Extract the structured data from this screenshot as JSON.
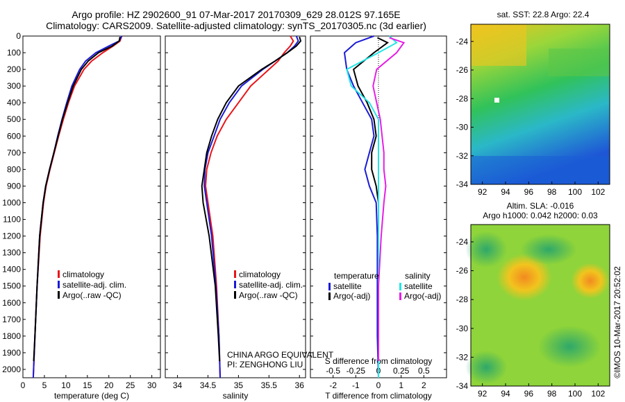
{
  "header": {
    "title_line1": "Argo profile: HZ 2902600_91 07-Mar-2017 20170309_629 28.012S 97.165E",
    "title_line2": "Climatology: CARS2009. Satellite-adjusted climatology: synTS_20170305.nc (3d earlier)"
  },
  "colors": {
    "climatology": "#e8141a",
    "satellite": "#1a1ad6",
    "argo": "#000000",
    "satellite_sal": "#22e5e5",
    "argo_adj_sal": "#e51ee5"
  },
  "depth_ticks": [
    0,
    100,
    200,
    300,
    400,
    500,
    600,
    700,
    800,
    900,
    1000,
    1100,
    1200,
    1300,
    1400,
    1500,
    1600,
    1700,
    1800,
    1900,
    2000
  ],
  "legend": {
    "climatology": "climatology",
    "satellite": "satellite-adj. clim.",
    "argo": "Argo(..raw -QC)"
  },
  "panel3_legend": {
    "temperature": "temperature",
    "salinity": "salinity",
    "satellite": "satellite",
    "argo_adj": "Argo(-adj)"
  },
  "panel3_top_label": "S difference from climatology",
  "annotation": {
    "line1": "CHINA ARGO EQUIVALENT",
    "line2": "PI: ZENGHONG LIU"
  },
  "map_sst": {
    "title": "sat. SST: 22.8 Argo: 22.4"
  },
  "map_sla": {
    "title_line1": "Altim. SLA: -0.016",
    "title_line2": "Argo h1000: 0.042 h2000: 0.03"
  },
  "map_x_ticks": [
    "92",
    "94",
    "96",
    "98",
    "100",
    "102"
  ],
  "map_y_ticks": [
    "-24",
    "-26",
    "-28",
    "-30",
    "-32",
    "-34"
  ],
  "stamp": "©IMOS 10-Mar-2017 20:52:02",
  "chart_data": [
    {
      "type": "line",
      "xlabel": "temperature (deg C)",
      "ylabel": "",
      "xlim": [
        0,
        32
      ],
      "ylim": [
        2050,
        0
      ],
      "x_ticks": [
        "0",
        "5",
        "10",
        "15",
        "20",
        "25",
        "30"
      ],
      "series": [
        {
          "name": "climatology",
          "depth": [
            0,
            30,
            60,
            100,
            150,
            200,
            300,
            400,
            500,
            600,
            700,
            800,
            900,
            1000,
            1200,
            1500,
            1800,
            2050
          ],
          "values": [
            23,
            22.6,
            21,
            18.6,
            16,
            14.2,
            12,
            10.6,
            9.4,
            8.3,
            7.3,
            6.3,
            5.4,
            4.8,
            4.0,
            3.3,
            2.8,
            2.4
          ]
        },
        {
          "name": "satellite-adj. clim.",
          "depth": [
            0,
            30,
            60,
            100,
            150,
            200,
            300,
            400,
            500,
            600,
            700,
            800,
            900,
            1000,
            1200,
            1500,
            1800,
            2050
          ],
          "values": [
            23,
            22.4,
            20,
            17.0,
            14.6,
            13.2,
            11.4,
            10.2,
            9.1,
            8.1,
            7.2,
            6.2,
            5.3,
            4.7,
            3.9,
            3.3,
            2.8,
            2.4
          ]
        },
        {
          "name": "Argo(..raw -QC)",
          "depth": [
            5,
            30,
            60,
            100,
            150,
            200,
            300,
            400,
            500,
            600,
            700,
            800,
            900,
            1000,
            1200,
            1500,
            1800,
            1950
          ],
          "values": [
            22.6,
            22.4,
            20.8,
            17.6,
            15.2,
            13.6,
            11.7,
            10.4,
            9.2,
            8.2,
            7.2,
            6.2,
            5.3,
            4.7,
            3.9,
            3.3,
            2.8,
            2.5
          ]
        }
      ]
    },
    {
      "type": "line",
      "xlabel": "salinity",
      "ylabel": "",
      "xlim": [
        33.8,
        36.1
      ],
      "ylim": [
        2050,
        0
      ],
      "x_ticks": [
        "34",
        "34.5",
        "35",
        "35.5",
        "36"
      ],
      "series": [
        {
          "name": "climatology",
          "depth": [
            0,
            30,
            60,
            100,
            150,
            200,
            300,
            400,
            500,
            600,
            700,
            800,
            900,
            1000,
            1200,
            1500,
            1800,
            2050
          ],
          "values": [
            35.85,
            35.9,
            35.85,
            35.75,
            35.65,
            35.5,
            35.2,
            35.0,
            34.8,
            34.65,
            34.55,
            34.48,
            34.46,
            34.5,
            34.58,
            34.64,
            34.68,
            34.7
          ]
        },
        {
          "name": "satellite-adj. clim.",
          "depth": [
            0,
            30,
            60,
            100,
            150,
            200,
            300,
            400,
            500,
            600,
            700,
            800,
            900,
            1000,
            1200,
            1500,
            1800,
            2050
          ],
          "values": [
            35.95,
            35.98,
            35.92,
            35.8,
            35.6,
            35.4,
            35.05,
            34.85,
            34.7,
            34.6,
            34.5,
            34.45,
            34.44,
            34.48,
            34.56,
            34.63,
            34.68,
            34.7
          ]
        },
        {
          "name": "Argo(..raw -QC)",
          "depth": [
            5,
            30,
            60,
            100,
            150,
            200,
            300,
            400,
            500,
            600,
            700,
            800,
            900,
            1000,
            1200,
            1500,
            1800,
            1950
          ],
          "values": [
            36.0,
            36.02,
            35.95,
            35.8,
            35.6,
            35.38,
            35.0,
            34.8,
            34.66,
            34.56,
            34.48,
            34.44,
            34.4,
            34.42,
            34.52,
            34.62,
            34.67,
            34.69
          ]
        }
      ]
    },
    {
      "type": "line",
      "xlabel": "T difference from climatology",
      "ylabel": "",
      "xlim": [
        -3,
        3
      ],
      "ylim": [
        2050,
        0
      ],
      "x_ticks": [
        "-2",
        "-1",
        "0",
        "1",
        "2"
      ],
      "x_ticks_top": [
        "-0.5",
        "-0.25",
        "0",
        "0.25",
        "0.5"
      ],
      "series": [
        {
          "name": "temperature satellite",
          "depth": [
            0,
            40,
            100,
            200,
            300,
            400,
            500,
            600,
            700,
            800,
            900,
            1000,
            1200,
            1500,
            1800,
            2050
          ],
          "values": [
            -0.2,
            -1.0,
            -1.5,
            -1.4,
            -1.1,
            -0.7,
            -0.3,
            -0.2,
            -0.4,
            -0.6,
            -0.4,
            -0.1,
            -0.05,
            -0.05,
            -0.05,
            0
          ]
        },
        {
          "name": "temperature Argo(-adj)",
          "depth": [
            10,
            40,
            100,
            200,
            300,
            400,
            500,
            600,
            700,
            800,
            900,
            1000,
            1200,
            1500,
            1800,
            1950
          ],
          "values": [
            -0.05,
            0.4,
            -0.2,
            -1.1,
            -0.9,
            -0.5,
            -0.2,
            -0.1,
            -0.3,
            -0.3,
            -0.1,
            0,
            0,
            0,
            0,
            0
          ]
        },
        {
          "name": "salinity satellite",
          "depth": [
            0,
            40,
            100,
            200,
            300,
            400,
            500,
            600,
            700,
            800,
            900,
            1000,
            1200,
            1500,
            1800,
            2050
          ],
          "values": [
            0.12,
            0.2,
            0.0,
            -0.35,
            -0.3,
            -0.1,
            0.0,
            0.0,
            0.0,
            0.0,
            0.0,
            0.0,
            0.0,
            0.0,
            0.0,
            0.0
          ]
        },
        {
          "name": "salinity Argo(-adj)",
          "depth": [
            10,
            40,
            100,
            200,
            300,
            400,
            500,
            600,
            700,
            800,
            900,
            1000,
            1200,
            1500,
            1800,
            1950
          ],
          "values": [
            0.12,
            0.28,
            0.2,
            -0.02,
            -0.06,
            -0.02,
            0.02,
            0.04,
            0.06,
            0.06,
            0.08,
            0.06,
            0.03,
            0.0,
            0.0,
            0.0
          ]
        }
      ]
    }
  ]
}
